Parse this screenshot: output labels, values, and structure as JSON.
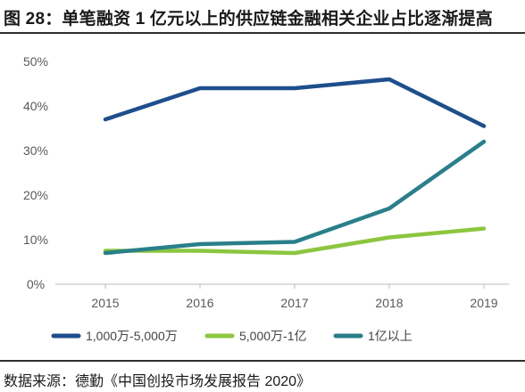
{
  "figure": {
    "title": "图 28：单笔融资 1 亿元以上的供应链金融相关企业占比逐渐提高",
    "source": "数据来源：德勤《中国创投市场发展报告 2020》"
  },
  "chart_data": {
    "type": "line",
    "x": [
      "2015",
      "2016",
      "2017",
      "2018",
      "2019"
    ],
    "ylim": [
      0,
      50
    ],
    "yticks": [
      0,
      10,
      20,
      30,
      40,
      50
    ],
    "ytick_labels": [
      "0%",
      "10%",
      "20%",
      "30%",
      "40%",
      "50%"
    ],
    "grid": false,
    "legend_position": "bottom",
    "series": [
      {
        "name": "1,000万-5,000万",
        "color": "#1f4e8c",
        "values": [
          37,
          44,
          44,
          46,
          35.5
        ]
      },
      {
        "name": "5,000万-1亿",
        "color": "#8cc63f",
        "values": [
          7.5,
          7.5,
          7,
          10.5,
          12.5
        ]
      },
      {
        "name": "1亿以上",
        "color": "#2a7f8a",
        "values": [
          7,
          9,
          9.5,
          17,
          32
        ]
      }
    ]
  }
}
